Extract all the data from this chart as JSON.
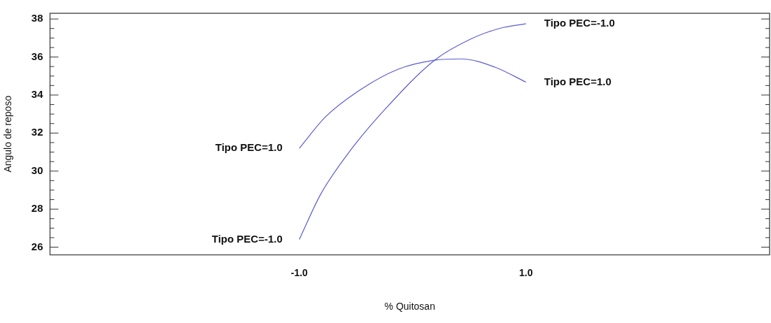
{
  "chart_data": {
    "type": "line",
    "xlabel": "% Quitosan",
    "ylabel": "Angulo de reposo",
    "xlim": [
      -3.2,
      3.15
    ],
    "xticks": [
      {
        "value": -1,
        "label": "-1.0"
      },
      {
        "value": 1,
        "label": "1.0"
      }
    ],
    "ylim": [
      25.6,
      38.3
    ],
    "yticks": [
      26,
      {
        "value": 26.5,
        "label": null
      },
      {
        "value": 27,
        "label": null
      },
      {
        "value": 27.5,
        "label": null
      },
      28,
      {
        "value": 28.5,
        "label": null
      },
      {
        "value": 29,
        "label": null
      },
      {
        "value": 29.5,
        "label": null
      },
      30,
      {
        "value": 30.5,
        "label": null
      },
      {
        "value": 31,
        "label": null
      },
      {
        "value": 31.5,
        "label": null
      },
      32,
      {
        "value": 32.5,
        "label": null
      },
      {
        "value": 33,
        "label": null
      },
      {
        "value": 33.5,
        "label": null
      },
      34,
      {
        "value": 34.5,
        "label": null
      },
      {
        "value": 35,
        "label": null
      },
      {
        "value": 35.5,
        "label": null
      },
      36,
      {
        "value": 36.5,
        "label": null
      },
      {
        "value": 37,
        "label": null
      },
      {
        "value": 37.5,
        "label": null
      },
      38
    ],
    "grid": false,
    "legend": false,
    "marker": "none",
    "line_style": "solid",
    "series": [
      {
        "name": "Tipo PEC=1.0",
        "color": "#5b5bd6",
        "x": [
          -1,
          -0.766,
          -0.446,
          -0.127,
          0.193,
          0.427,
          0.725,
          1
        ],
        "values": [
          31.2,
          32.87,
          34.34,
          35.36,
          35.83,
          35.9,
          35.47,
          34.68
        ]
      },
      {
        "name": "Tipo PEC=-1.0",
        "color": "#5b5bd6",
        "x": [
          -1,
          -0.81,
          -0.553,
          -0.233,
          0.193,
          0.51,
          0.766,
          1
        ],
        "values": [
          26.41,
          28.8,
          31.06,
          33.32,
          35.83,
          36.94,
          37.5,
          37.75
        ]
      }
    ]
  }
}
